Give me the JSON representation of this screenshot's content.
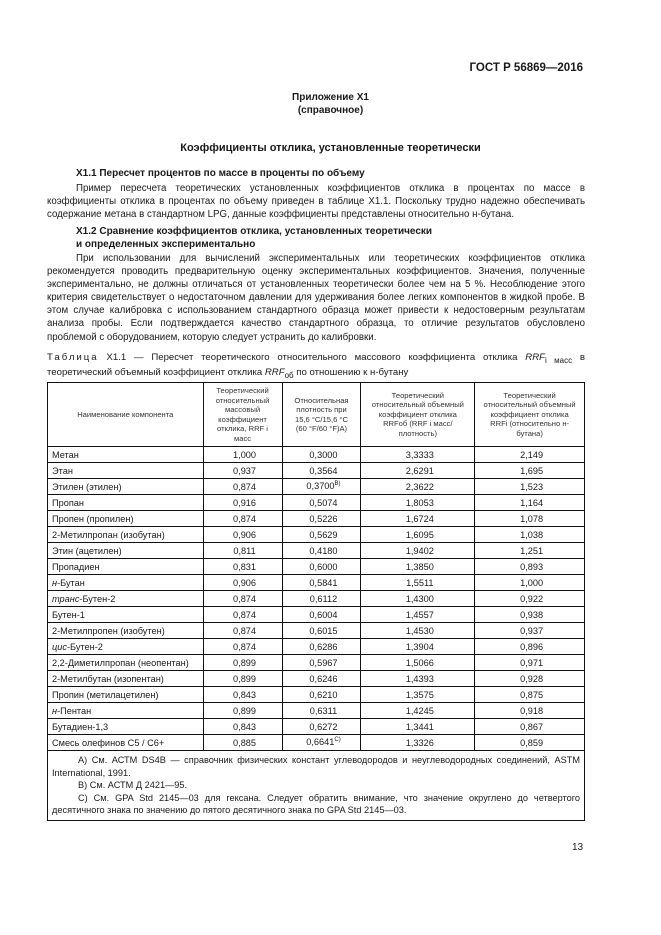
{
  "header": {
    "doc_code": "ГОСТ Р 56869—2016"
  },
  "appendix": {
    "title": "Приложение Х1",
    "subtitle": "(справочное)"
  },
  "main_title": "Коэффициенты отклика, установленные теоретически",
  "section1": {
    "title": "Х1.1 Пересчет процентов по массе в проценты по объему",
    "text": "Пример пересчета теоретических установленных коэффициентов отклика в процентах по массе в коэффициенты отклика в процентах по объему приведен в таблице Х1.1. Поскольку трудно надежно обеспечивать содержание метана в стандартном LPG, данные коэффициенты представлены относительно н-бутана."
  },
  "section2": {
    "title_line1": "Х1.2 Сравнение коэффициентов отклика, установленных теоретически",
    "title_line2": "и определенных экспериментально",
    "text": "При использовании для вычислений экспериментальных или теоретических коэффициентов отклика рекомендуется проводить предварительную оценку экспериментальных коэффициентов. Значения, полученные экспериментально, не должны отличаться от установленных теоретически более чем на 5 %. Несоблюдение этого критерия свидетельствует о недостаточном давлении для удерживания более легких компонентов в жидкой пробе. В этом случае калибровка с использованием стандартного образца может привести к недостоверным результатам анализа пробы. Если подтверждается качество стандартного образца, то отличие результатов обусловлено проблемой с оборудованием, которую следует устранить до калибровки."
  },
  "table": {
    "caption_label": "Таблица",
    "caption_num": "Х1.1 — Пересчет теоретического относительного массового коэффициента отклика",
    "caption_rrf1": "RRF",
    "caption_sub1": "i масс",
    "caption_mid": "в теоретический объемный коэффициент отклика",
    "caption_rrf2": "RRF",
    "caption_sub2": "об",
    "caption_end": "по отношению к н-бутану",
    "headers": [
      "Наименование компонента",
      "Теоретический относительный массовый коэффициент отклика, RRF i масс",
      "Относительная плотность при 15,6 °С/15,6 °С (60 °F/60 °F)А)",
      "Теоретический относительный объемный коэффициент отклика RRFоб (RRF i масс/плотность)",
      "Теоретический относительный объемный коэффициент отклика RRFi (относительно н-бутана)"
    ],
    "rows": [
      {
        "pre": "",
        "name": "Метан",
        "c": [
          "1,000",
          "0,3000",
          "3,3333",
          "2,149"
        ]
      },
      {
        "pre": "",
        "name": "Этан",
        "c": [
          "0,937",
          "0,3564",
          "2,6291",
          "1,695"
        ]
      },
      {
        "pre": "",
        "name": "Этилен (этилен)",
        "c": [
          "0,874",
          "0,3700",
          "2,3622",
          "1,523"
        ],
        "sup": "В)"
      },
      {
        "pre": "",
        "name": "Пропан",
        "c": [
          "0,916",
          "0,5074",
          "1,8053",
          "1,164"
        ]
      },
      {
        "pre": "",
        "name": "Пропен (пропилен)",
        "c": [
          "0,874",
          "0,5226",
          "1,6724",
          "1,078"
        ]
      },
      {
        "pre": "",
        "name": "2-Метилпропан (изобутан)",
        "c": [
          "0,906",
          "0,5629",
          "1,6095",
          "1,038"
        ]
      },
      {
        "pre": "",
        "name": "Этин (ацетилен)",
        "c": [
          "0,811",
          "0,4180",
          "1,9402",
          "1,251"
        ]
      },
      {
        "pre": "",
        "name": "Пропадиен",
        "c": [
          "0,831",
          "0,6000",
          "1,3850",
          "0,893"
        ]
      },
      {
        "pre": "н",
        "name": "-Бутан",
        "c": [
          "0,906",
          "0,5841",
          "1,5511",
          "1,000"
        ]
      },
      {
        "pre": "транс",
        "name": "-Бутен-2",
        "c": [
          "0,874",
          "0,6112",
          "1,4300",
          "0,922"
        ]
      },
      {
        "pre": "",
        "name": "Бутен-1",
        "c": [
          "0,874",
          "0,6004",
          "1,4557",
          "0,938"
        ]
      },
      {
        "pre": "",
        "name": "2-Метилпропен (изобутен)",
        "c": [
          "0,874",
          "0,6015",
          "1,4530",
          "0,937"
        ]
      },
      {
        "pre": "цис",
        "name": "-Бутен-2",
        "c": [
          "0,874",
          "0,6286",
          "1,3904",
          "0,896"
        ]
      },
      {
        "pre": "",
        "name": "2,2-Диметилпропан (неопентан)",
        "c": [
          "0,899",
          "0,5967",
          "1,5066",
          "0,971"
        ]
      },
      {
        "pre": "",
        "name": "2-Метилбутан (изопентан)",
        "c": [
          "0,899",
          "0,6246",
          "1,4393",
          "0,928"
        ]
      },
      {
        "pre": "",
        "name": "Пропин (метилацетилен)",
        "c": [
          "0,843",
          "0,6210",
          "1,3575",
          "0,875"
        ]
      },
      {
        "pre": "н",
        "name": "-Пентан",
        "c": [
          "0,899",
          "0,6311",
          "1,4245",
          "0,918"
        ]
      },
      {
        "pre": "",
        "name": "Бутадиен-1,3",
        "c": [
          "0,843",
          "0,6272",
          "1,3441",
          "0,867"
        ]
      },
      {
        "pre": "",
        "name": "Смесь олефинов С5 / С6+",
        "c": [
          "0,885",
          "0,6641",
          "1,3326",
          "0,859"
        ],
        "sup": "С)"
      }
    ],
    "footnotes": [
      "А) См. АСТМ DS4B — справочник физических констант углеводородов и неуглеводородных соединений, ASTM International, 1991.",
      "В) См. АСТМ Д 2421—95.",
      "С) См. GPA Std 2145—03 для гексана. Следует обратить внимание, что значение округлено до четвертого десятичного знака по значению до пятого десятичного знака по GPA Std 2145—03."
    ]
  },
  "page_number": "13"
}
